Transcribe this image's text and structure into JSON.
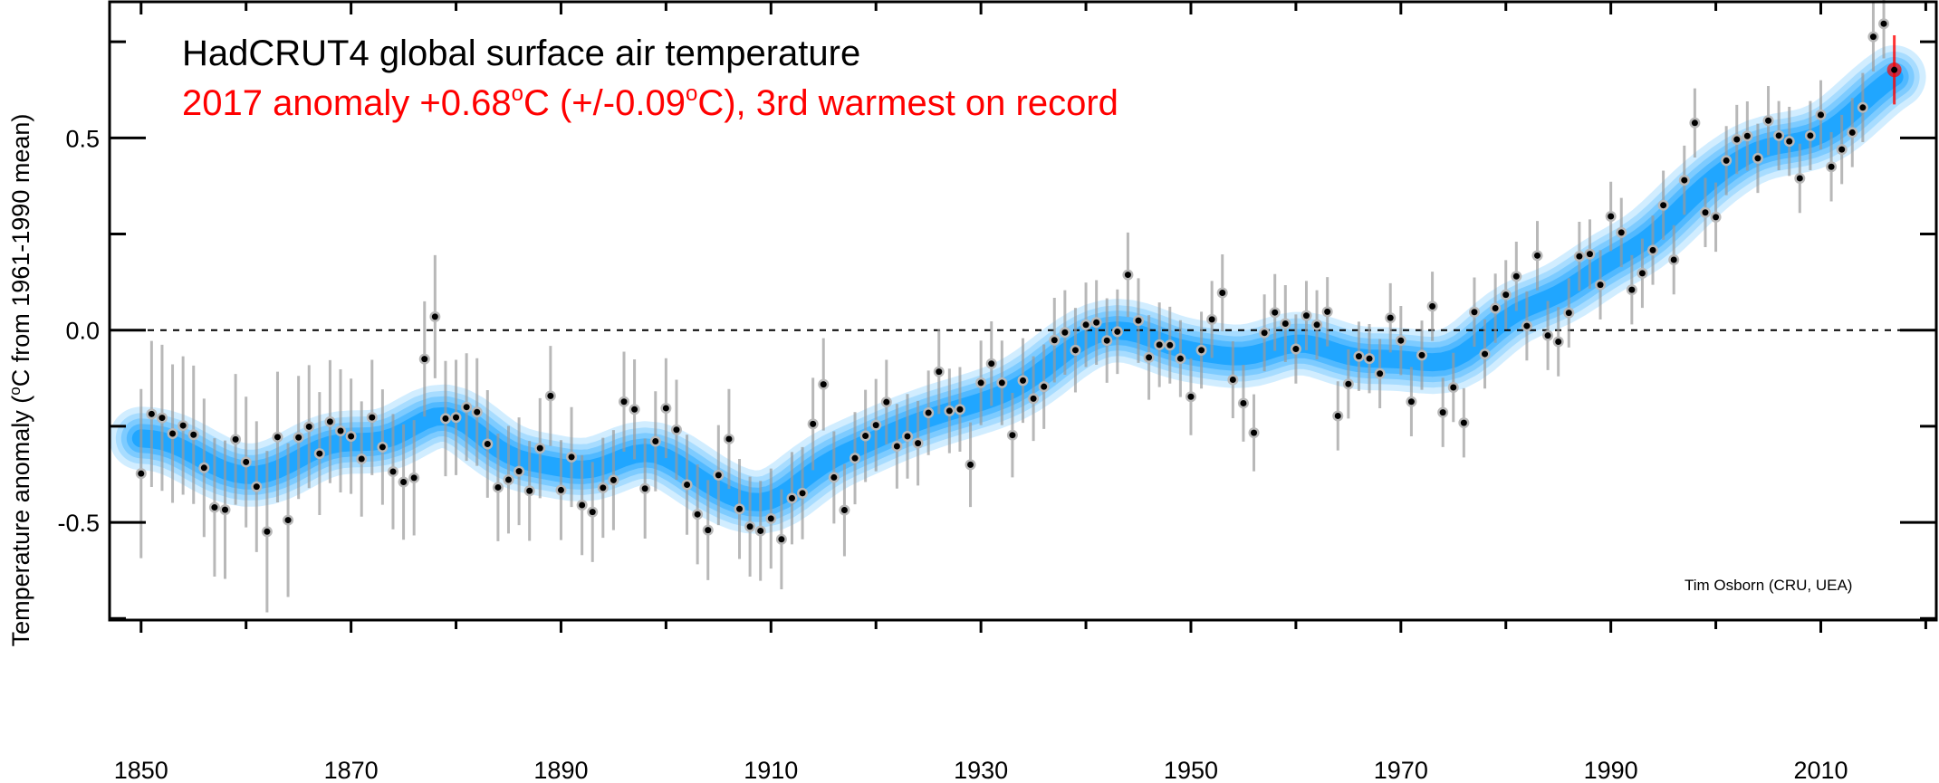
{
  "chart_data": {
    "type": "scatter",
    "title": "HadCRUT4 global surface air temperature",
    "subtitle_parts": [
      "2017 anomaly +0.68",
      "o",
      "C (+/-0.09",
      "o",
      "C), 3rd warmest on record"
    ],
    "ylabel_parts": [
      "Temperature anomaly (",
      "o",
      "C from 1961-1990 mean)"
    ],
    "credit": "Tim Osborn (CRU, UEA)",
    "xlim": [
      1847,
      2021
    ],
    "ylim": [
      -0.754,
      0.854
    ],
    "x_ticks": [
      1850,
      1870,
      1890,
      1910,
      1930,
      1950,
      1970,
      1990,
      2010
    ],
    "x_tick_labels": [
      "1850",
      "1870",
      "1890",
      "1910",
      "1930",
      "1950",
      "1970",
      "1990",
      "2010"
    ],
    "y_ticks": [
      -0.5,
      0.0,
      0.5
    ],
    "y_tick_labels": [
      "-0.5",
      "0.0",
      "0.5"
    ],
    "zero_line": "dashed",
    "grid": false,
    "colors": {
      "smooth": "#0099ff",
      "point": "#000000",
      "point_halo": "#b8b8b8",
      "errorbar": "#9a9a9a",
      "highlight": "#ff0000",
      "subtitle": "#ff0000"
    },
    "highlight_year": 2017,
    "start_year": 1850,
    "values": [
      -0.373,
      -0.218,
      -0.228,
      -0.269,
      -0.248,
      -0.272,
      -0.358,
      -0.461,
      -0.467,
      -0.284,
      -0.343,
      -0.407,
      -0.524,
      -0.278,
      -0.494,
      -0.279,
      -0.251,
      -0.321,
      -0.238,
      -0.262,
      -0.276,
      -0.335,
      -0.227,
      -0.304,
      -0.368,
      -0.395,
      -0.384,
      -0.075,
      0.035,
      -0.23,
      -0.227,
      -0.2,
      -0.213,
      -0.296,
      -0.409,
      -0.389,
      -0.367,
      -0.418,
      -0.307,
      -0.171,
      -0.416,
      -0.33,
      -0.455,
      -0.473,
      -0.41,
      -0.39,
      -0.186,
      -0.206,
      -0.412,
      -0.289,
      -0.203,
      -0.259,
      -0.402,
      -0.479,
      -0.52,
      -0.377,
      -0.283,
      -0.465,
      -0.511,
      -0.522,
      -0.49,
      -0.544,
      -0.437,
      -0.424,
      -0.244,
      -0.141,
      -0.383,
      -0.468,
      -0.333,
      -0.275,
      -0.247,
      -0.187,
      -0.302,
      -0.276,
      -0.294,
      -0.215,
      -0.108,
      -0.21,
      -0.206,
      -0.35,
      -0.137,
      -0.087,
      -0.137,
      -0.273,
      -0.131,
      -0.178,
      -0.147,
      -0.026,
      -0.006,
      -0.052,
      0.014,
      0.02,
      -0.027,
      -0.004,
      0.144,
      0.025,
      -0.071,
      -0.038,
      -0.039,
      -0.074,
      -0.173,
      -0.052,
      0.028,
      0.097,
      -0.129,
      -0.19,
      -0.267,
      -0.007,
      0.046,
      0.017,
      -0.049,
      0.038,
      0.014,
      0.048,
      -0.223,
      -0.14,
      -0.068,
      -0.074,
      -0.113,
      0.032,
      -0.027,
      -0.186,
      -0.065,
      0.062,
      -0.214,
      -0.149,
      -0.241,
      0.047,
      -0.062,
      0.057,
      0.092,
      0.14,
      0.011,
      0.194,
      -0.014,
      -0.03,
      0.045,
      0.192,
      0.198,
      0.118,
      0.296,
      0.254,
      0.105,
      0.148,
      0.208,
      0.325,
      0.183,
      0.39,
      0.539,
      0.306,
      0.294,
      0.441,
      0.496,
      0.505,
      0.447,
      0.545,
      0.506,
      0.491,
      0.395,
      0.506,
      0.56,
      0.425,
      0.47,
      0.514,
      0.579,
      0.763,
      0.797,
      0.677
    ],
    "uncertainty": [
      0.22,
      0.19,
      0.19,
      0.18,
      0.18,
      0.18,
      0.18,
      0.18,
      0.18,
      0.17,
      0.17,
      0.17,
      0.21,
      0.17,
      0.2,
      0.16,
      0.16,
      0.16,
      0.16,
      0.16,
      0.15,
      0.15,
      0.15,
      0.15,
      0.15,
      0.15,
      0.15,
      0.15,
      0.16,
      0.15,
      0.15,
      0.14,
      0.14,
      0.14,
      0.14,
      0.14,
      0.14,
      0.13,
      0.13,
      0.13,
      0.13,
      0.13,
      0.13,
      0.13,
      0.13,
      0.13,
      0.13,
      0.13,
      0.13,
      0.13,
      0.13,
      0.13,
      0.13,
      0.13,
      0.13,
      0.13,
      0.13,
      0.13,
      0.13,
      0.13,
      0.13,
      0.13,
      0.12,
      0.12,
      0.12,
      0.12,
      0.12,
      0.12,
      0.12,
      0.12,
      0.12,
      0.11,
      0.11,
      0.11,
      0.11,
      0.11,
      0.11,
      0.11,
      0.11,
      0.11,
      0.11,
      0.11,
      0.11,
      0.11,
      0.11,
      0.11,
      0.11,
      0.11,
      0.11,
      0.11,
      0.11,
      0.11,
      0.11,
      0.11,
      0.11,
      0.11,
      0.11,
      0.11,
      0.1,
      0.1,
      0.1,
      0.1,
      0.1,
      0.1,
      0.1,
      0.1,
      0.1,
      0.1,
      0.1,
      0.1,
      0.09,
      0.09,
      0.09,
      0.09,
      0.09,
      0.09,
      0.09,
      0.09,
      0.09,
      0.09,
      0.09,
      0.09,
      0.09,
      0.09,
      0.09,
      0.09,
      0.09,
      0.09,
      0.09,
      0.09,
      0.09,
      0.09,
      0.09,
      0.09,
      0.09,
      0.09,
      0.09,
      0.09,
      0.09,
      0.09,
      0.09,
      0.09,
      0.09,
      0.09,
      0.09,
      0.09,
      0.09,
      0.09,
      0.09,
      0.09,
      0.09,
      0.09,
      0.09,
      0.09,
      0.09,
      0.09,
      0.09,
      0.09,
      0.09,
      0.09,
      0.09,
      0.09,
      0.09,
      0.09,
      0.09,
      0.09,
      0.09,
      0.09
    ]
  }
}
